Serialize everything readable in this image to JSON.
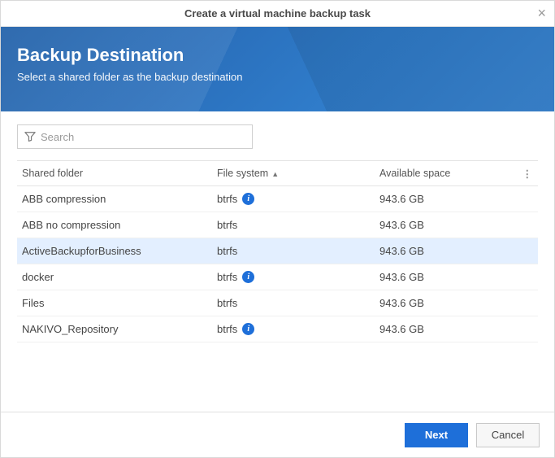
{
  "titlebar": {
    "text": "Create a virtual machine backup task"
  },
  "banner": {
    "title": "Backup Destination",
    "subtitle": "Select a shared folder as the backup destination"
  },
  "search": {
    "placeholder": "Search"
  },
  "columns": {
    "c0": "Shared folder",
    "c1": "File system",
    "c2": "Available space",
    "sort_indicator": "▲"
  },
  "rows": [
    {
      "folder": "ABB compression",
      "fs": "btrfs",
      "info": true,
      "space": "943.6 GB",
      "selected": false
    },
    {
      "folder": "ABB no compression",
      "fs": "btrfs",
      "info": false,
      "space": "943.6 GB",
      "selected": false
    },
    {
      "folder": "ActiveBackupforBusiness",
      "fs": "btrfs",
      "info": false,
      "space": "943.6 GB",
      "selected": true
    },
    {
      "folder": "docker",
      "fs": "btrfs",
      "info": true,
      "space": "943.6 GB",
      "selected": false
    },
    {
      "folder": "Files",
      "fs": "btrfs",
      "info": false,
      "space": "943.6 GB",
      "selected": false
    },
    {
      "folder": "NAKIVO_Repository",
      "fs": "btrfs",
      "info": true,
      "space": "943.6 GB",
      "selected": false
    }
  ],
  "footer": {
    "next": "Next",
    "cancel": "Cancel"
  },
  "colors": {
    "accent": "#1e6fd9",
    "selected_row": "#e3efff"
  }
}
